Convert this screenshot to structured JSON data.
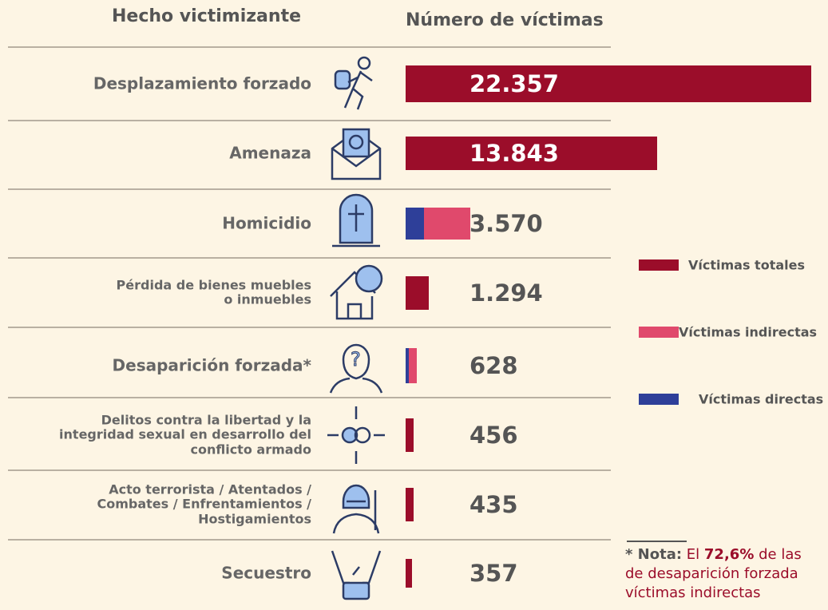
{
  "chart_data": {
    "type": "bar",
    "header_category": "Hecho victimizante",
    "header_value": "Número de víctimas",
    "categories": [
      "Desplazamiento forzado",
      "Amenaza",
      "Homicidio",
      "Pérdida de bienes muebles\no inmuebles",
      "Desaparición forzada*",
      "Delitos contra la libertad y la\nintegridad sexual en desarrollo del\nconflicto armado",
      "Acto terrorista / Atentados /\nCombates / Enfrentamientos /\nHostigamientos",
      "Secuestro"
    ],
    "values": [
      22357,
      13843,
      3570,
      1294,
      628,
      456,
      435,
      357
    ],
    "value_labels": [
      "22.357",
      "13.843",
      "3.570",
      "1.294",
      "628",
      "456",
      "435",
      "357"
    ],
    "series": [
      {
        "name": "Víctimas totales",
        "color": "#9b0d2a",
        "values": [
          22357,
          13843,
          null,
          1294,
          null,
          456,
          435,
          357
        ]
      },
      {
        "name": "Víctimas directas",
        "color": "#2e3f99",
        "values": [
          null,
          null,
          1020,
          null,
          172,
          null,
          null,
          null
        ]
      },
      {
        "name": "Víctimas indirectas",
        "color": "#e0496c",
        "values": [
          null,
          null,
          2550,
          null,
          456,
          null,
          null,
          null
        ]
      }
    ],
    "note": {
      "lead": "* Nota:",
      "text1": "El",
      "pct": "72,6%",
      "text2": "de las",
      "line2": "de desaparición forzada",
      "line3": "víctimas indirectas"
    }
  }
}
